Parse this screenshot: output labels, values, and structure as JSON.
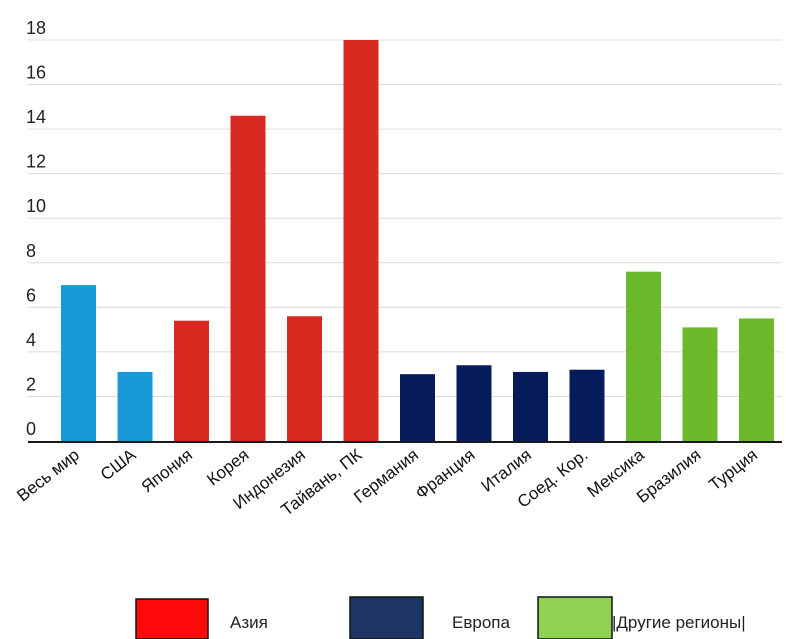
{
  "chart_data": {
    "type": "bar",
    "categories": [
      "Весь мир",
      "США",
      "Япония",
      "Корея",
      "Индонезия",
      "Тайвань, ПК",
      "Германия",
      "Франция",
      "Италия",
      "Соед. Кор.",
      "Мексика",
      "Бразилия",
      "Турция"
    ],
    "values": [
      7.0,
      3.1,
      5.4,
      14.6,
      5.6,
      18.0,
      3.0,
      3.4,
      3.1,
      3.2,
      7.6,
      5.1,
      5.5
    ],
    "groups": [
      "world",
      "world",
      "asia",
      "asia",
      "asia",
      "asia",
      "europe",
      "europe",
      "europe",
      "europe",
      "other",
      "other",
      "other"
    ],
    "group_colors": {
      "world": "#199ad8",
      "asia": "#d82a20",
      "europe": "#061c5a",
      "other": "#6bb92b"
    },
    "ylim": [
      0,
      18
    ],
    "yticks": [
      0,
      2,
      4,
      6,
      8,
      10,
      12,
      14,
      16,
      18
    ],
    "grid": true,
    "title": "",
    "xlabel": "",
    "ylabel": "",
    "legend_position": "bottom",
    "legend": [
      {
        "label": "Азия",
        "color": "#ff0a0a"
      },
      {
        "label": "Европа",
        "color": "#1d3564"
      },
      {
        "label": "|Другие регионы|",
        "color": "#8fd151"
      }
    ]
  }
}
